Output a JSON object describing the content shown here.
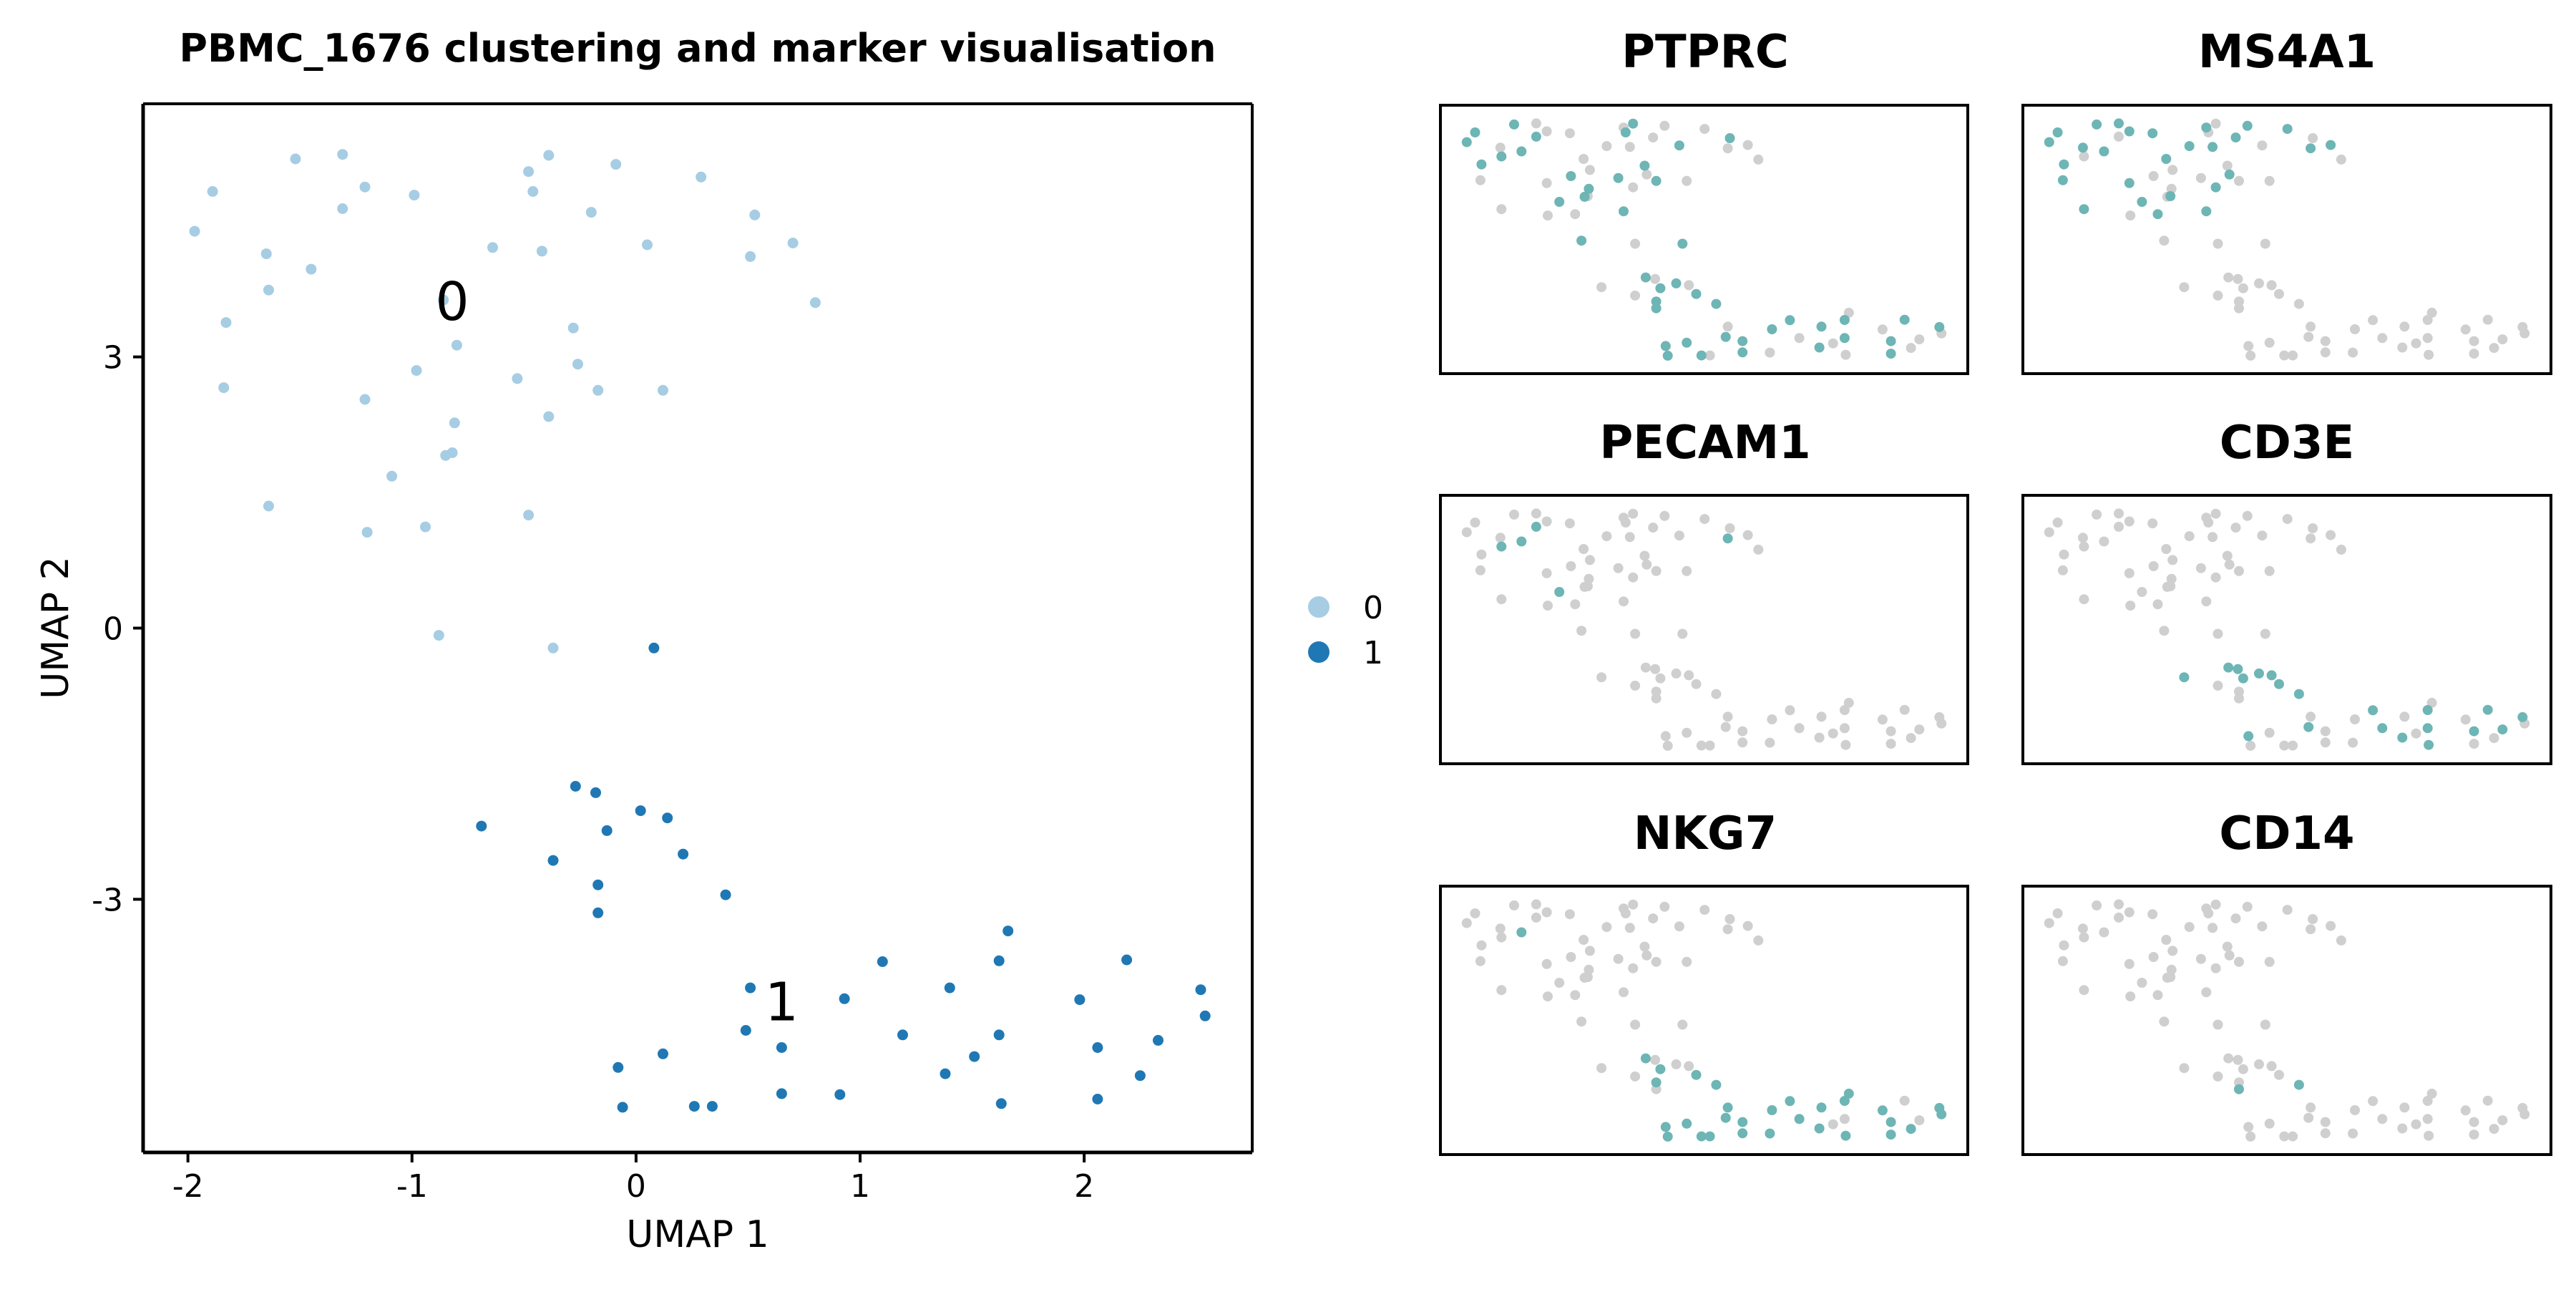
{
  "figure": {
    "colors": {
      "cluster_0": "#a6cde3",
      "cluster_1": "#1f78b4",
      "marker_high": "#6eb5b5",
      "marker_low": "#cfcfcf",
      "axis": "#000000",
      "background": "#ffffff"
    }
  },
  "chart_data": [
    {
      "type": "scatter",
      "title": "PBMC_1676 clustering and marker visualisation",
      "xlabel": "UMAP 1",
      "ylabel": "UMAP 2",
      "xlim": [
        -2.2,
        2.75
      ],
      "ylim": [
        -5.8,
        5.8
      ],
      "xticks": [
        -2,
        -1,
        0,
        1,
        2
      ],
      "yticks": [
        -3,
        0,
        3
      ],
      "grid": false,
      "legend": {
        "placement": "right",
        "entries": [
          "0",
          "1"
        ]
      },
      "cluster_labels": [
        {
          "text": "0",
          "x": -0.82,
          "y": 3.6
        },
        {
          "text": "1",
          "x": 0.65,
          "y": -4.15
        }
      ],
      "series": [
        {
          "name": "0",
          "color": "#a6cde3",
          "points": [
            [
              -1.97,
              4.39
            ],
            [
              -1.89,
              4.83
            ],
            [
              -1.83,
              3.38
            ],
            [
              -1.84,
              2.66
            ],
            [
              -1.65,
              4.14
            ],
            [
              -1.64,
              3.74
            ],
            [
              -1.52,
              5.19
            ],
            [
              -1.45,
              3.97
            ],
            [
              -1.31,
              5.24
            ],
            [
              -1.31,
              4.64
            ],
            [
              -1.21,
              4.88
            ],
            [
              -1.21,
              2.53
            ],
            [
              -1.09,
              1.68
            ],
            [
              -0.99,
              4.79
            ],
            [
              -0.98,
              2.85
            ],
            [
              -0.94,
              1.12
            ],
            [
              -0.86,
              3.63
            ],
            [
              -0.85,
              1.91
            ],
            [
              -0.82,
              1.94
            ],
            [
              -0.81,
              2.27
            ],
            [
              -0.8,
              3.13
            ],
            [
              -0.64,
              4.21
            ],
            [
              -0.53,
              2.76
            ],
            [
              -0.48,
              5.05
            ],
            [
              -0.46,
              4.83
            ],
            [
              -0.42,
              4.17
            ],
            [
              -0.39,
              5.23
            ],
            [
              -0.39,
              2.34
            ],
            [
              -0.28,
              3.32
            ],
            [
              -0.26,
              2.92
            ],
            [
              -0.2,
              4.6
            ],
            [
              -0.17,
              2.63
            ],
            [
              -0.09,
              5.13
            ],
            [
              0.05,
              4.24
            ],
            [
              0.12,
              2.63
            ],
            [
              0.29,
              4.99
            ],
            [
              0.51,
              4.11
            ],
            [
              0.53,
              4.57
            ],
            [
              0.7,
              4.26
            ],
            [
              0.8,
              3.6
            ],
            [
              -1.64,
              1.35
            ],
            [
              -1.2,
              1.06
            ],
            [
              -0.48,
              1.25
            ],
            [
              -0.88,
              -0.08
            ],
            [
              -0.37,
              -0.22
            ]
          ]
        },
        {
          "name": "1",
          "color": "#1f78b4",
          "points": [
            [
              0.08,
              -0.22
            ],
            [
              -0.69,
              -2.19
            ],
            [
              -0.27,
              -1.75
            ],
            [
              -0.18,
              -1.82
            ],
            [
              -0.13,
              -2.24
            ],
            [
              0.02,
              -2.02
            ],
            [
              0.14,
              -2.1
            ],
            [
              0.21,
              -2.5
            ],
            [
              -0.37,
              -2.57
            ],
            [
              -0.17,
              -2.84
            ],
            [
              -0.17,
              -3.15
            ],
            [
              0.4,
              -2.95
            ],
            [
              1.1,
              -3.69
            ],
            [
              1.66,
              -3.35
            ],
            [
              1.62,
              -3.68
            ],
            [
              2.19,
              -3.67
            ],
            [
              0.51,
              -3.98
            ],
            [
              0.93,
              -4.1
            ],
            [
              1.4,
              -3.98
            ],
            [
              1.98,
              -4.11
            ],
            [
              2.52,
              -4.0
            ],
            [
              2.54,
              -4.29
            ],
            [
              0.49,
              -4.45
            ],
            [
              1.19,
              -4.5
            ],
            [
              1.62,
              -4.5
            ],
            [
              0.65,
              -4.64
            ],
            [
              0.12,
              -4.71
            ],
            [
              1.51,
              -4.74
            ],
            [
              2.06,
              -4.64
            ],
            [
              2.33,
              -4.56
            ],
            [
              -0.08,
              -4.86
            ],
            [
              1.38,
              -4.93
            ],
            [
              2.25,
              -4.95
            ],
            [
              0.65,
              -5.15
            ],
            [
              0.91,
              -5.16
            ],
            [
              2.06,
              -5.21
            ],
            [
              1.63,
              -5.26
            ],
            [
              -0.06,
              -5.3
            ],
            [
              0.26,
              -5.29
            ],
            [
              0.34,
              -5.29
            ]
          ]
        }
      ]
    },
    {
      "type": "scatter",
      "title": "PTPRC",
      "high_points": [
        [
          -1.97,
          4.39
        ],
        [
          -1.89,
          4.83
        ],
        [
          -1.83,
          3.38
        ],
        [
          -1.64,
          3.74
        ],
        [
          -1.52,
          5.19
        ],
        [
          -1.45,
          3.97
        ],
        [
          -1.31,
          4.64
        ],
        [
          -1.09,
          1.68
        ],
        [
          -0.98,
          2.85
        ],
        [
          -0.85,
          1.91
        ],
        [
          -0.81,
          2.27
        ],
        [
          -0.53,
          2.76
        ],
        [
          -0.46,
          4.83
        ],
        [
          -0.39,
          5.23
        ],
        [
          -0.28,
          3.32
        ],
        [
          -0.17,
          2.63
        ],
        [
          0.05,
          4.24
        ],
        [
          0.53,
          4.57
        ],
        [
          -0.48,
          1.25
        ],
        [
          -0.88,
          -0.08
        ],
        [
          0.08,
          -0.22
        ],
        [
          -0.27,
          -1.75
        ],
        [
          -0.13,
          -2.24
        ],
        [
          0.02,
          -2.02
        ],
        [
          0.21,
          -2.5
        ],
        [
          -0.17,
          -2.84
        ],
        [
          -0.17,
          -3.15
        ],
        [
          0.4,
          -2.95
        ],
        [
          1.1,
          -3.69
        ],
        [
          1.62,
          -3.68
        ],
        [
          2.19,
          -3.67
        ],
        [
          0.93,
          -4.1
        ],
        [
          1.4,
          -3.98
        ],
        [
          2.52,
          -4.0
        ],
        [
          0.49,
          -4.45
        ],
        [
          1.62,
          -4.5
        ],
        [
          0.65,
          -4.64
        ],
        [
          0.12,
          -4.71
        ],
        [
          2.06,
          -4.64
        ],
        [
          -0.08,
          -4.86
        ],
        [
          1.38,
          -4.93
        ],
        [
          0.65,
          -5.15
        ],
        [
          2.06,
          -5.21
        ],
        [
          -0.06,
          -5.3
        ],
        [
          0.26,
          -5.29
        ]
      ]
    },
    {
      "type": "scatter",
      "title": "MS4A1",
      "high_points": [
        [
          -1.97,
          4.39
        ],
        [
          -1.89,
          4.83
        ],
        [
          -1.83,
          3.38
        ],
        [
          -1.84,
          2.66
        ],
        [
          -1.65,
          4.14
        ],
        [
          -1.52,
          5.19
        ],
        [
          -1.45,
          3.97
        ],
        [
          -1.31,
          5.24
        ],
        [
          -1.21,
          4.88
        ],
        [
          -1.21,
          2.53
        ],
        [
          -1.09,
          1.68
        ],
        [
          -0.99,
          4.79
        ],
        [
          -0.94,
          1.12
        ],
        [
          -0.86,
          3.63
        ],
        [
          -0.82,
          1.94
        ],
        [
          -0.64,
          4.21
        ],
        [
          -0.48,
          5.05
        ],
        [
          -0.42,
          4.17
        ],
        [
          -0.39,
          2.34
        ],
        [
          -0.26,
          2.92
        ],
        [
          -0.2,
          4.6
        ],
        [
          -0.09,
          5.13
        ],
        [
          0.29,
          4.99
        ],
        [
          0.51,
          4.11
        ],
        [
          0.7,
          4.26
        ],
        [
          -1.64,
          1.35
        ],
        [
          -0.48,
          1.25
        ]
      ]
    },
    {
      "type": "scatter",
      "title": "PECAM1",
      "high_points": [
        [
          -1.64,
          3.74
        ],
        [
          -1.45,
          3.97
        ],
        [
          -1.09,
          1.68
        ],
        [
          -1.31,
          4.64
        ],
        [
          0.51,
          4.11
        ]
      ]
    },
    {
      "type": "scatter",
      "title": "CD3E",
      "high_points": [
        [
          -0.69,
          -2.19
        ],
        [
          -0.27,
          -1.75
        ],
        [
          -0.18,
          -1.82
        ],
        [
          -0.13,
          -2.24
        ],
        [
          0.02,
          -2.02
        ],
        [
          0.14,
          -2.1
        ],
        [
          0.21,
          -2.5
        ],
        [
          0.4,
          -2.95
        ],
        [
          1.1,
          -3.69
        ],
        [
          1.62,
          -3.68
        ],
        [
          2.19,
          -3.67
        ],
        [
          2.52,
          -4.0
        ],
        [
          0.49,
          -4.45
        ],
        [
          1.19,
          -4.5
        ],
        [
          1.62,
          -4.5
        ],
        [
          2.06,
          -4.64
        ],
        [
          2.33,
          -4.56
        ],
        [
          -0.08,
          -4.86
        ],
        [
          1.38,
          -4.93
        ],
        [
          1.63,
          -5.26
        ]
      ]
    },
    {
      "type": "scatter",
      "title": "NKG7",
      "high_points": [
        [
          -1.45,
          3.97
        ],
        [
          -0.27,
          -1.75
        ],
        [
          -0.13,
          -2.24
        ],
        [
          0.21,
          -2.5
        ],
        [
          -0.17,
          -2.84
        ],
        [
          0.4,
          -2.95
        ],
        [
          1.1,
          -3.69
        ],
        [
          1.66,
          -3.35
        ],
        [
          1.62,
          -3.68
        ],
        [
          0.51,
          -3.98
        ],
        [
          0.93,
          -4.1
        ],
        [
          1.4,
          -3.98
        ],
        [
          1.98,
          -4.11
        ],
        [
          2.52,
          -4.0
        ],
        [
          2.54,
          -4.29
        ],
        [
          0.49,
          -4.45
        ],
        [
          1.19,
          -4.5
        ],
        [
          0.65,
          -4.64
        ],
        [
          0.12,
          -4.71
        ],
        [
          2.06,
          -4.64
        ],
        [
          -0.08,
          -4.86
        ],
        [
          1.38,
          -4.93
        ],
        [
          2.25,
          -4.95
        ],
        [
          0.65,
          -5.15
        ],
        [
          0.91,
          -5.16
        ],
        [
          2.06,
          -5.21
        ],
        [
          -0.06,
          -5.3
        ],
        [
          0.26,
          -5.29
        ],
        [
          0.34,
          -5.29
        ],
        [
          1.63,
          -5.26
        ]
      ]
    },
    {
      "type": "scatter",
      "title": "CD14",
      "high_points": [
        [
          -0.17,
          -3.15
        ],
        [
          0.4,
          -2.95
        ]
      ]
    }
  ]
}
